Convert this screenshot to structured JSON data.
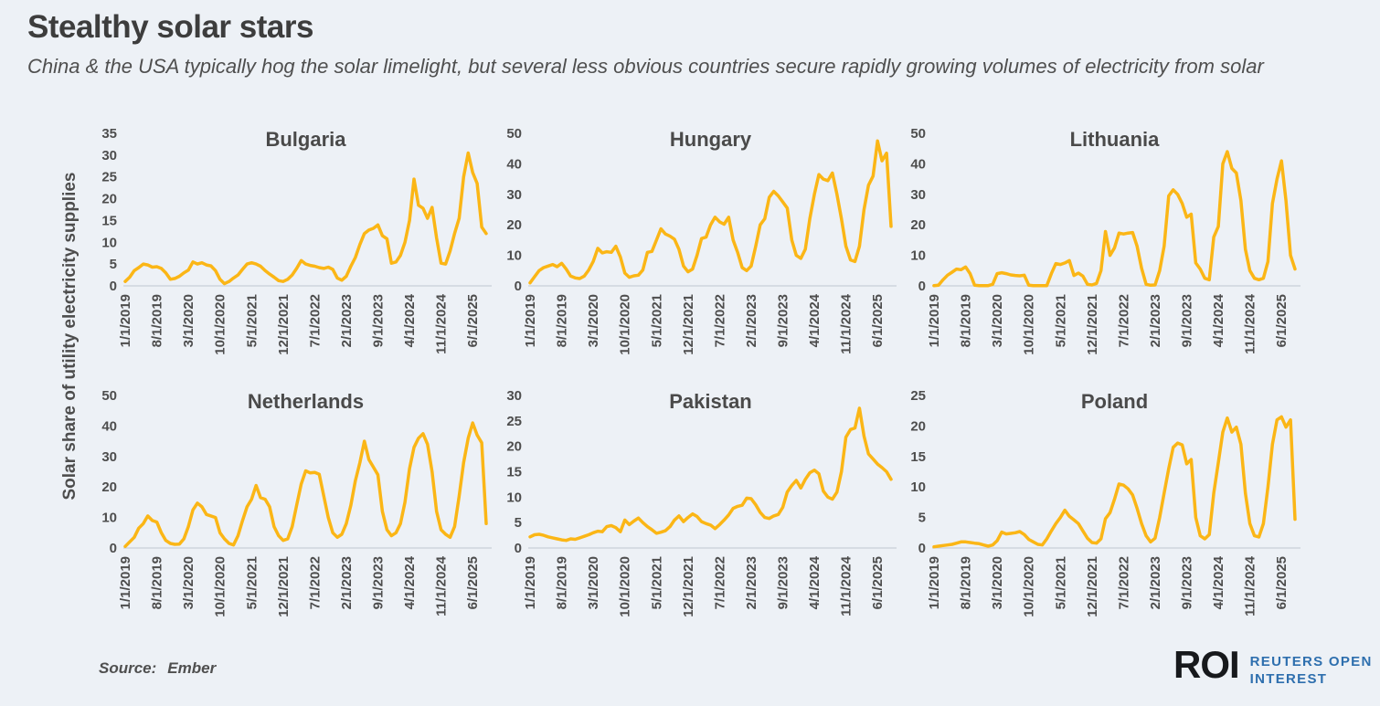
{
  "header": {
    "title": "Stealthy solar stars",
    "subtitle": "China & the USA typically hog the solar limelight, but several less obvious countries secure rapidly growing volumes of electricity from solar"
  },
  "y_axis_label": "Solar share of utility electricity supplies",
  "x_axis": {
    "labels": [
      "1/1/2019",
      "8/1/2019",
      "3/1/2020",
      "10/1/2020",
      "5/1/2021",
      "12/1/2021",
      "7/1/2022",
      "2/1/2023",
      "9/1/2023",
      "4/1/2024",
      "11/1/2024",
      "6/1/2025"
    ],
    "label_indices": [
      0,
      7,
      14,
      21,
      28,
      35,
      42,
      49,
      56,
      63,
      70,
      77
    ],
    "frequency": "monthly",
    "start": "1/2019",
    "end": "9/2025"
  },
  "theme": {
    "line_color": "#FBB616",
    "axis_line_color": "#C9CFD8",
    "text_color": "#4D4D4D",
    "background": "#EDF1F6",
    "logo_blue": "#2E6FAE"
  },
  "footer": {
    "source_label": "Source:",
    "source_value": "Ember",
    "logo": {
      "monogram": "ROI",
      "line1": "REUTERS OPEN",
      "line2": "INTEREST"
    }
  },
  "chart_data": [
    {
      "type": "line",
      "title": "Bulgaria",
      "y_max": 35,
      "y_ticks": [
        0,
        5,
        10,
        15,
        20,
        25,
        30,
        35
      ],
      "values": [
        1.0,
        2.0,
        3.5,
        4.2,
        5.0,
        4.8,
        4.3,
        4.4,
        4.0,
        3.0,
        1.5,
        1.7,
        2.2,
        3.0,
        3.6,
        5.5,
        5.0,
        5.3,
        4.8,
        4.6,
        3.5,
        1.5,
        0.5,
        1.0,
        1.8,
        2.5,
        3.8,
        5.0,
        5.3,
        5.0,
        4.5,
        3.5,
        2.7,
        2.0,
        1.2,
        1.0,
        1.5,
        2.5,
        4.0,
        5.8,
        5.0,
        4.7,
        4.5,
        4.2,
        4.0,
        4.3,
        3.8,
        1.8,
        1.3,
        2.2,
        4.5,
        6.5,
        9.5,
        12.0,
        12.8,
        13.2,
        14.0,
        11.5,
        10.8,
        5.2,
        5.5,
        7.0,
        10.0,
        15.0,
        24.5,
        18.5,
        17.8,
        15.5,
        18.0,
        11.0,
        5.2,
        5.0,
        8.0,
        12.0,
        15.5,
        25.0,
        30.5,
        26.0,
        23.5,
        13.5,
        12.0
      ]
    },
    {
      "type": "line",
      "title": "Hungary",
      "y_max": 50,
      "y_ticks": [
        0,
        10,
        20,
        30,
        40,
        50
      ],
      "values": [
        1.0,
        3.0,
        5.0,
        6.0,
        6.5,
        7.0,
        6.3,
        7.4,
        5.5,
        3.2,
        2.6,
        2.4,
        3.2,
        5.2,
        8.0,
        12.3,
        10.8,
        11.2,
        11.0,
        13.0,
        9.5,
        4.2,
        2.8,
        3.3,
        3.5,
        5.2,
        11.0,
        11.3,
        15.0,
        18.7,
        17.0,
        16.3,
        15.3,
        12.0,
        6.5,
        4.6,
        5.5,
        10.0,
        15.5,
        16.0,
        20.0,
        22.5,
        21.0,
        20.2,
        22.5,
        15.0,
        11.0,
        6.0,
        5.0,
        6.5,
        13.0,
        20.0,
        22.0,
        29.0,
        31.0,
        29.5,
        27.5,
        25.5,
        15.0,
        10.0,
        9.0,
        12.0,
        22.0,
        30.0,
        36.5,
        35.0,
        34.5,
        37.0,
        30.0,
        22.0,
        13.0,
        8.5,
        8.0,
        13.0,
        25.0,
        33.0,
        36.0,
        47.5,
        41.0,
        43.5,
        19.5
      ]
    },
    {
      "type": "line",
      "title": "Lithuania",
      "y_max": 50,
      "y_ticks": [
        0,
        10,
        20,
        30,
        40,
        50
      ],
      "values": [
        0.1,
        0.2,
        2.0,
        3.5,
        4.5,
        5.5,
        5.3,
        6.2,
        4.0,
        0.2,
        0.1,
        0.1,
        0.1,
        0.5,
        4.0,
        4.3,
        4.0,
        3.6,
        3.4,
        3.3,
        3.5,
        0.2,
        0.1,
        0.1,
        0.1,
        0.1,
        4.0,
        7.3,
        7.0,
        7.5,
        8.3,
        3.4,
        4.2,
        3.2,
        0.5,
        0.3,
        0.8,
        5.0,
        17.8,
        10.0,
        12.5,
        17.3,
        17.0,
        17.3,
        17.5,
        13.0,
        5.8,
        0.5,
        0.2,
        0.3,
        5.0,
        13.0,
        29.5,
        31.5,
        30.0,
        27.0,
        22.5,
        23.5,
        7.5,
        5.5,
        2.5,
        2.0,
        16.0,
        19.5,
        40.0,
        44.0,
        38.5,
        37.0,
        28.0,
        12.0,
        5.0,
        2.5,
        2.0,
        2.5,
        8.0,
        27.0,
        35.0,
        41.0,
        28.0,
        10.0,
        5.5
      ]
    },
    {
      "type": "line",
      "title": "Netherlands",
      "y_max": 50,
      "y_ticks": [
        0,
        10,
        20,
        30,
        40,
        50
      ],
      "values": [
        0.5,
        2.0,
        3.5,
        6.5,
        8.0,
        10.5,
        9.0,
        8.5,
        5.0,
        2.5,
        1.5,
        1.2,
        1.3,
        3.0,
        7.0,
        12.5,
        14.7,
        13.5,
        11.0,
        10.5,
        10.0,
        5.0,
        3.0,
        1.5,
        1.0,
        4.0,
        9.0,
        13.5,
        16.0,
        20.5,
        16.5,
        16.0,
        13.5,
        7.0,
        4.0,
        2.5,
        3.0,
        7.0,
        14.0,
        21.0,
        25.3,
        24.6,
        24.8,
        24.2,
        17.0,
        10.0,
        5.0,
        3.5,
        4.5,
        8.0,
        14.0,
        22.0,
        28.0,
        35.0,
        29.0,
        26.5,
        24.0,
        12.0,
        6.0,
        4.0,
        5.0,
        8.0,
        15.0,
        26.0,
        33.0,
        36.0,
        37.5,
        34.0,
        25.0,
        12.0,
        6.0,
        4.5,
        3.5,
        7.0,
        17.0,
        28.0,
        36.0,
        41.0,
        37.0,
        34.5,
        8.0
      ]
    },
    {
      "type": "line",
      "title": "Pakistan",
      "y_max": 30,
      "y_ticks": [
        0,
        5,
        10,
        15,
        20,
        25,
        30
      ],
      "values": [
        2.2,
        2.6,
        2.7,
        2.5,
        2.2,
        2.0,
        1.8,
        1.6,
        1.5,
        1.8,
        1.7,
        2.0,
        2.3,
        2.6,
        3.0,
        3.3,
        3.2,
        4.2,
        4.4,
        4.0,
        3.2,
        5.5,
        4.6,
        5.3,
        5.9,
        5.0,
        4.2,
        3.6,
        2.9,
        3.1,
        3.4,
        4.2,
        5.5,
        6.3,
        5.2,
        6.0,
        6.7,
        6.2,
        5.2,
        4.8,
        4.5,
        3.8,
        4.6,
        5.5,
        6.5,
        7.8,
        8.2,
        8.4,
        9.8,
        9.7,
        8.5,
        7.0,
        6.0,
        5.8,
        6.3,
        6.6,
        8.0,
        11.0,
        12.3,
        13.3,
        11.8,
        13.5,
        14.8,
        15.3,
        14.6,
        11.2,
        10.0,
        9.6,
        11.0,
        15.0,
        21.8,
        23.3,
        23.6,
        27.5,
        22.0,
        18.5,
        17.5,
        16.5,
        15.8,
        15.0,
        13.5
      ]
    },
    {
      "type": "line",
      "title": "Poland",
      "y_max": 25,
      "y_ticks": [
        0,
        5,
        10,
        15,
        20,
        25
      ],
      "values": [
        0.2,
        0.3,
        0.4,
        0.5,
        0.6,
        0.8,
        1.0,
        1.0,
        0.9,
        0.8,
        0.7,
        0.5,
        0.3,
        0.5,
        1.2,
        2.6,
        2.3,
        2.4,
        2.5,
        2.7,
        2.2,
        1.4,
        1.0,
        0.6,
        0.5,
        1.5,
        2.8,
        4.0,
        5.0,
        6.2,
        5.2,
        4.6,
        4.0,
        2.8,
        1.6,
        0.9,
        0.8,
        1.5,
        4.8,
        5.8,
        8.0,
        10.5,
        10.3,
        9.7,
        8.7,
        6.5,
        4.0,
        2.0,
        1.0,
        1.6,
        5.0,
        9.0,
        13.0,
        16.5,
        17.2,
        16.9,
        13.8,
        14.5,
        5.0,
        2.0,
        1.5,
        2.2,
        9.0,
        14.0,
        19.0,
        21.3,
        19.0,
        19.8,
        17.0,
        9.0,
        4.0,
        2.0,
        1.8,
        4.0,
        10.0,
        17.0,
        21.0,
        21.5,
        19.8,
        21.0,
        4.7
      ]
    }
  ]
}
